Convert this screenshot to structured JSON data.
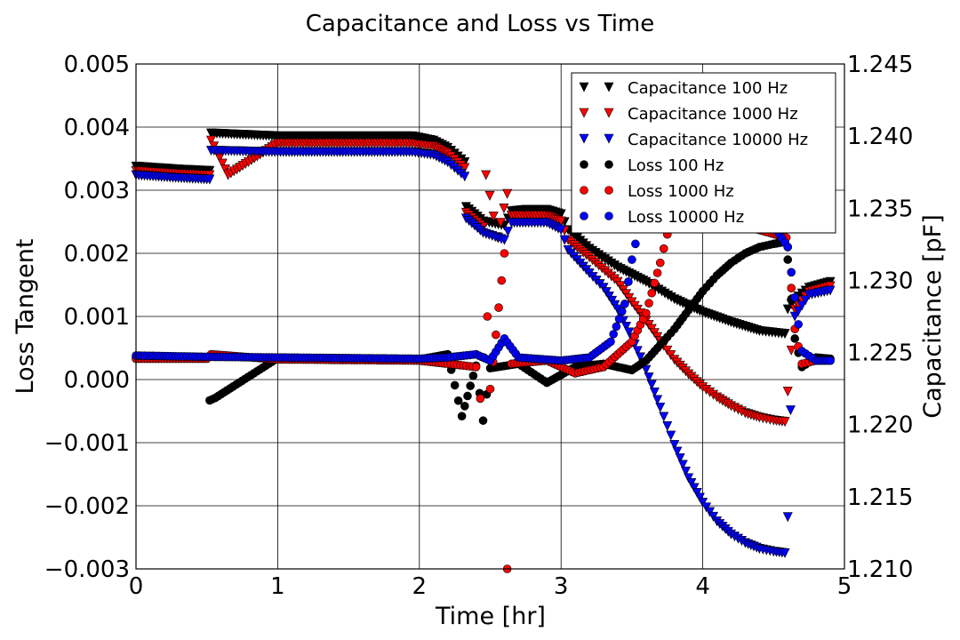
{
  "chart_data": {
    "type": "scatter",
    "title": "Capacitance and Loss vs Time",
    "xlabel": "Time [hr]",
    "ylabel_left": "Loss Tangent",
    "ylabel_right": "Capacitance [pF]",
    "xlim": [
      0,
      5
    ],
    "ylim_left": [
      -0.003,
      0.005
    ],
    "ylim_right": [
      1.21,
      1.245
    ],
    "x_ticks": [
      "0",
      "1",
      "2",
      "3",
      "4",
      "5"
    ],
    "y_left_ticks": [
      "0.005",
      "0.004",
      "0.003",
      "0.002",
      "0.001",
      "0.000",
      "−0.001",
      "−0.002",
      "−0.003"
    ],
    "y_right_ticks": [
      "1.245",
      "1.240",
      "1.235",
      "1.230",
      "1.225",
      "1.220",
      "1.215",
      "1.210"
    ],
    "grid": true,
    "legend_position": "top-right",
    "colors": {
      "100 Hz": "#000000",
      "1000 Hz": "#ff0000",
      "10000 Hz": "#0000ff"
    },
    "series": [
      {
        "name": "Capacitance 100 Hz",
        "marker": "triangle-down",
        "color": "#000000",
        "axis": "right",
        "points": [
          [
            0,
            1.2379
          ],
          [
            0.3,
            1.2377
          ],
          [
            0.52,
            1.2376
          ],
          [
            0.53,
            1.2402
          ],
          [
            1.0,
            1.24
          ],
          [
            1.5,
            1.24
          ],
          [
            1.95,
            1.24
          ],
          [
            2.1,
            1.2397
          ],
          [
            2.2,
            1.2392
          ],
          [
            2.32,
            1.2382
          ],
          [
            2.33,
            1.2351
          ],
          [
            2.45,
            1.2341
          ],
          [
            2.6,
            1.2338
          ],
          [
            2.65,
            1.2348
          ],
          [
            2.75,
            1.2349
          ],
          [
            2.9,
            1.2349
          ],
          [
            3.0,
            1.2346
          ],
          [
            3.05,
            1.2335
          ],
          [
            3.2,
            1.2322
          ],
          [
            3.4,
            1.2309
          ],
          [
            3.6,
            1.2299
          ],
          [
            3.8,
            1.2287
          ],
          [
            4.0,
            1.2278
          ],
          [
            4.2,
            1.2271
          ],
          [
            4.4,
            1.2265
          ],
          [
            4.58,
            1.2263
          ],
          [
            4.6,
            1.228
          ],
          [
            4.65,
            1.2287
          ],
          [
            4.75,
            1.2295
          ],
          [
            4.9,
            1.2299
          ]
        ]
      },
      {
        "name": "Capacitance 1000 Hz",
        "marker": "triangle-down",
        "color": "#ff0000",
        "axis": "right",
        "points": [
          [
            0,
            1.2376
          ],
          [
            0.3,
            1.2374
          ],
          [
            0.52,
            1.2373
          ],
          [
            0.53,
            1.2397
          ],
          [
            0.65,
            1.2373
          ],
          [
            1.0,
            1.2395
          ],
          [
            1.5,
            1.2395
          ],
          [
            1.95,
            1.2395
          ],
          [
            2.1,
            1.2393
          ],
          [
            2.2,
            1.2388
          ],
          [
            2.32,
            1.2378
          ],
          [
            2.33,
            1.2347
          ],
          [
            2.45,
            1.2337
          ],
          [
            2.47,
            1.2373
          ],
          [
            2.55,
            1.233
          ],
          [
            2.62,
            1.236
          ],
          [
            2.65,
            1.2345
          ],
          [
            2.75,
            1.2345
          ],
          [
            2.9,
            1.2345
          ],
          [
            3.0,
            1.2341
          ],
          [
            3.05,
            1.2328
          ],
          [
            3.2,
            1.2316
          ],
          [
            3.4,
            1.2299
          ],
          [
            3.5,
            1.2285
          ],
          [
            3.6,
            1.2272
          ],
          [
            3.7,
            1.2258
          ],
          [
            3.8,
            1.2245
          ],
          [
            3.9,
            1.2235
          ],
          [
            4.0,
            1.2226
          ],
          [
            4.1,
            1.2219
          ],
          [
            4.2,
            1.2213
          ],
          [
            4.3,
            1.2208
          ],
          [
            4.4,
            1.2205
          ],
          [
            4.5,
            1.2203
          ],
          [
            4.58,
            1.2202
          ],
          [
            4.6,
            1.2223
          ],
          [
            4.65,
            1.228
          ],
          [
            4.75,
            1.2292
          ],
          [
            4.9,
            1.2296
          ]
        ]
      },
      {
        "name": "Capacitance 10000 Hz",
        "marker": "triangle-down",
        "color": "#0000ff",
        "axis": "right",
        "points": [
          [
            0,
            1.2373
          ],
          [
            0.3,
            1.2371
          ],
          [
            0.52,
            1.237
          ],
          [
            0.53,
            1.239
          ],
          [
            1.0,
            1.2389
          ],
          [
            1.5,
            1.2389
          ],
          [
            1.95,
            1.2389
          ],
          [
            2.1,
            1.2387
          ],
          [
            2.2,
            1.2382
          ],
          [
            2.32,
            1.2372
          ],
          [
            2.33,
            1.2343
          ],
          [
            2.45,
            1.2333
          ],
          [
            2.6,
            1.2328
          ],
          [
            2.65,
            1.234
          ],
          [
            2.75,
            1.234
          ],
          [
            2.9,
            1.234
          ],
          [
            3.0,
            1.2335
          ],
          [
            3.05,
            1.2321
          ],
          [
            3.2,
            1.2305
          ],
          [
            3.3,
            1.2295
          ],
          [
            3.4,
            1.228
          ],
          [
            3.5,
            1.226
          ],
          [
            3.6,
            1.2238
          ],
          [
            3.7,
            1.2212
          ],
          [
            3.8,
            1.2186
          ],
          [
            3.9,
            1.2163
          ],
          [
            4.0,
            1.2146
          ],
          [
            4.1,
            1.2133
          ],
          [
            4.2,
            1.2124
          ],
          [
            4.3,
            1.2118
          ],
          [
            4.4,
            1.2114
          ],
          [
            4.5,
            1.2112
          ],
          [
            4.58,
            1.2111
          ],
          [
            4.6,
            1.2136
          ],
          [
            4.62,
            1.221
          ],
          [
            4.65,
            1.2275
          ],
          [
            4.75,
            1.229
          ],
          [
            4.9,
            1.2293
          ]
        ]
      },
      {
        "name": "Loss 100 Hz",
        "marker": "circle",
        "color": "#000000",
        "axis": "left",
        "points": [
          [
            0,
            0.00035
          ],
          [
            0.5,
            0.00034
          ],
          [
            0.52,
            -0.00033
          ],
          [
            0.56,
            -0.00029
          ],
          [
            1.0,
            0.00034
          ],
          [
            1.5,
            0.00033
          ],
          [
            2.0,
            0.00032
          ],
          [
            2.2,
            0.0004
          ],
          [
            2.3,
            -0.00058
          ],
          [
            2.4,
            0.00022
          ],
          [
            2.45,
            -0.00065
          ],
          [
            2.5,
            0.00018
          ],
          [
            2.7,
            0.00025
          ],
          [
            2.9,
            -5e-05
          ],
          [
            3.1,
            0.0002
          ],
          [
            3.3,
            0.00025
          ],
          [
            3.5,
            0.00015
          ],
          [
            3.6,
            0.0003
          ],
          [
            3.7,
            0.00055
          ],
          [
            3.8,
            0.0008
          ],
          [
            3.9,
            0.0011
          ],
          [
            4.0,
            0.0014
          ],
          [
            4.1,
            0.00165
          ],
          [
            4.2,
            0.00185
          ],
          [
            4.3,
            0.002
          ],
          [
            4.4,
            0.0021
          ],
          [
            4.5,
            0.00215
          ],
          [
            4.58,
            0.00218
          ],
          [
            4.6,
            0.0019
          ],
          [
            4.65,
            0.00065
          ],
          [
            4.7,
            0.0002
          ],
          [
            4.8,
            0.00035
          ],
          [
            4.9,
            0.00033
          ]
        ]
      },
      {
        "name": "Loss 1000 Hz",
        "marker": "circle",
        "color": "#ff0000",
        "axis": "left",
        "points": [
          [
            0,
            0.00033
          ],
          [
            0.5,
            0.00033
          ],
          [
            0.53,
            0.0004
          ],
          [
            1.0,
            0.00032
          ],
          [
            1.5,
            0.00031
          ],
          [
            2.0,
            0.0003
          ],
          [
            2.2,
            0.00025
          ],
          [
            2.4,
            0.0002
          ],
          [
            2.43,
            -0.0003
          ],
          [
            2.48,
            0.001
          ],
          [
            2.5,
            -0.00015
          ],
          [
            2.6,
            0.002
          ],
          [
            2.62,
            -0.003
          ],
          [
            2.65,
            0.00025
          ],
          [
            2.9,
            0.0003
          ],
          [
            3.1,
            0.0001
          ],
          [
            3.3,
            0.0002
          ],
          [
            3.5,
            0.0006
          ],
          [
            3.6,
            0.00105
          ],
          [
            3.7,
            0.00185
          ],
          [
            3.75,
            0.0023
          ],
          [
            3.8,
            0.00275
          ],
          [
            4.59,
            0.00225
          ],
          [
            4.6,
            0.0021
          ],
          [
            4.65,
            0.0008
          ],
          [
            4.7,
            0.00025
          ],
          [
            4.8,
            0.0003
          ],
          [
            4.9,
            0.0003
          ]
        ]
      },
      {
        "name": "Loss 10000 Hz",
        "marker": "circle",
        "color": "#0000ff",
        "axis": "left",
        "points": [
          [
            0,
            0.00038
          ],
          [
            0.5,
            0.00036
          ],
          [
            1.0,
            0.00035
          ],
          [
            1.5,
            0.00034
          ],
          [
            2.0,
            0.00033
          ],
          [
            2.2,
            0.00035
          ],
          [
            2.4,
            0.0004
          ],
          [
            2.5,
            0.0003
          ],
          [
            2.6,
            0.00065
          ],
          [
            2.7,
            0.00035
          ],
          [
            3.0,
            0.0003
          ],
          [
            3.2,
            0.00035
          ],
          [
            3.35,
            0.0006
          ],
          [
            3.45,
            0.0012
          ],
          [
            3.5,
            0.0019
          ],
          [
            3.55,
            0.0024
          ],
          [
            3.6,
            0.0032
          ],
          [
            3.7,
            0.004
          ],
          [
            3.8,
            0.0048
          ],
          [
            4.6,
            0.0021
          ],
          [
            4.65,
            0.0013
          ],
          [
            4.7,
            0.00045
          ],
          [
            4.8,
            0.0003
          ],
          [
            4.9,
            0.0003
          ]
        ]
      }
    ]
  }
}
